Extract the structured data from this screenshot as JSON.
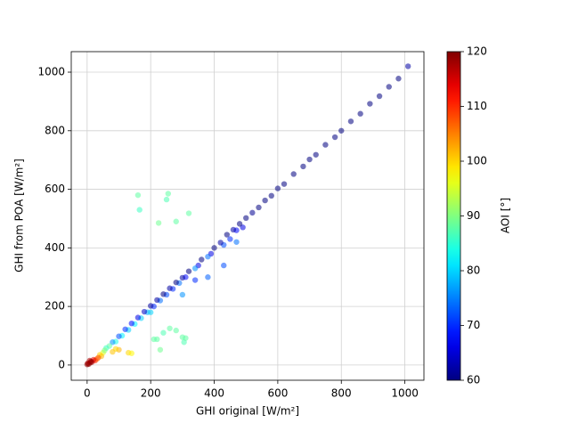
{
  "chart_data": {
    "type": "scatter",
    "x_label": "GHI original [W/m²]",
    "y_label": "GHI from POA [W/m²]",
    "x": [
      1010,
      980,
      950,
      920,
      890,
      860,
      830,
      800,
      780,
      750,
      720,
      700,
      680,
      650,
      620,
      600,
      580,
      560,
      540,
      520,
      500,
      490,
      480,
      470,
      460,
      450,
      440,
      430,
      420,
      400,
      390,
      380,
      360,
      350,
      340,
      320,
      310,
      300,
      290,
      280,
      270,
      260,
      250,
      240,
      230,
      220,
      210,
      200,
      190,
      180,
      170,
      160,
      150,
      140,
      130,
      120,
      110,
      100,
      90,
      80,
      70,
      60,
      50,
      45,
      40,
      30,
      25,
      20,
      15,
      10,
      5,
      0,
      2,
      8,
      12,
      35,
      55,
      470,
      430,
      380,
      300,
      200,
      340,
      160,
      165,
      255,
      250,
      280,
      225,
      320,
      210,
      220,
      230,
      240,
      260,
      280,
      300,
      305,
      310,
      130,
      140,
      100,
      80,
      90
    ],
    "y": [
      1020,
      978,
      950,
      918,
      892,
      858,
      832,
      800,
      778,
      752,
      718,
      702,
      678,
      652,
      618,
      603,
      578,
      562,
      538,
      520,
      502,
      470,
      482,
      460,
      462,
      430,
      445,
      410,
      418,
      400,
      380,
      370,
      360,
      340,
      330,
      320,
      300,
      298,
      280,
      282,
      260,
      262,
      240,
      242,
      220,
      222,
      200,
      202,
      180,
      182,
      160,
      162,
      140,
      142,
      120,
      122,
      100,
      98,
      80,
      78,
      65,
      58,
      42,
      30,
      35,
      20,
      15,
      18,
      10,
      8,
      3,
      2,
      6,
      15,
      12,
      25,
      50,
      420,
      340,
      300,
      240,
      180,
      290,
      580,
      530,
      585,
      565,
      490,
      485,
      518,
      88,
      88,
      52,
      110,
      125,
      118,
      95,
      78,
      92,
      42,
      40,
      52,
      45,
      55
    ],
    "color_values": [
      62,
      60,
      60,
      60,
      60,
      60,
      60,
      60,
      60,
      60,
      60,
      60,
      60,
      60,
      60,
      60,
      60,
      60,
      60,
      61,
      60,
      66,
      60,
      68,
      62,
      70,
      60,
      72,
      62,
      60,
      66,
      74,
      60,
      66,
      76,
      60,
      68,
      62,
      74,
      60,
      70,
      62,
      72,
      60,
      74,
      62,
      70,
      62,
      78,
      64,
      80,
      66,
      82,
      68,
      80,
      70,
      82,
      72,
      84,
      76,
      88,
      86,
      96,
      102,
      100,
      105,
      110,
      114,
      116,
      118,
      120,
      119,
      118,
      117,
      119,
      108,
      90,
      74,
      72,
      73,
      76,
      80,
      70,
      88,
      86,
      88,
      87,
      88,
      89,
      88,
      88,
      88,
      89,
      87,
      88,
      88,
      88,
      87,
      88,
      100,
      98,
      102,
      101,
      100
    ],
    "colormap": "jet",
    "alpha": 0.55,
    "xlim": [
      -50,
      1060
    ],
    "ylim": [
      -52,
      1070
    ],
    "xticks": [
      0,
      200,
      400,
      600,
      800,
      1000
    ],
    "yticks": [
      0,
      200,
      400,
      600,
      800,
      1000
    ],
    "grid": true,
    "colorbar": {
      "label": "AOI [°]",
      "lim": [
        60,
        120
      ],
      "ticks": [
        60,
        70,
        80,
        90,
        100,
        110,
        120
      ]
    }
  }
}
